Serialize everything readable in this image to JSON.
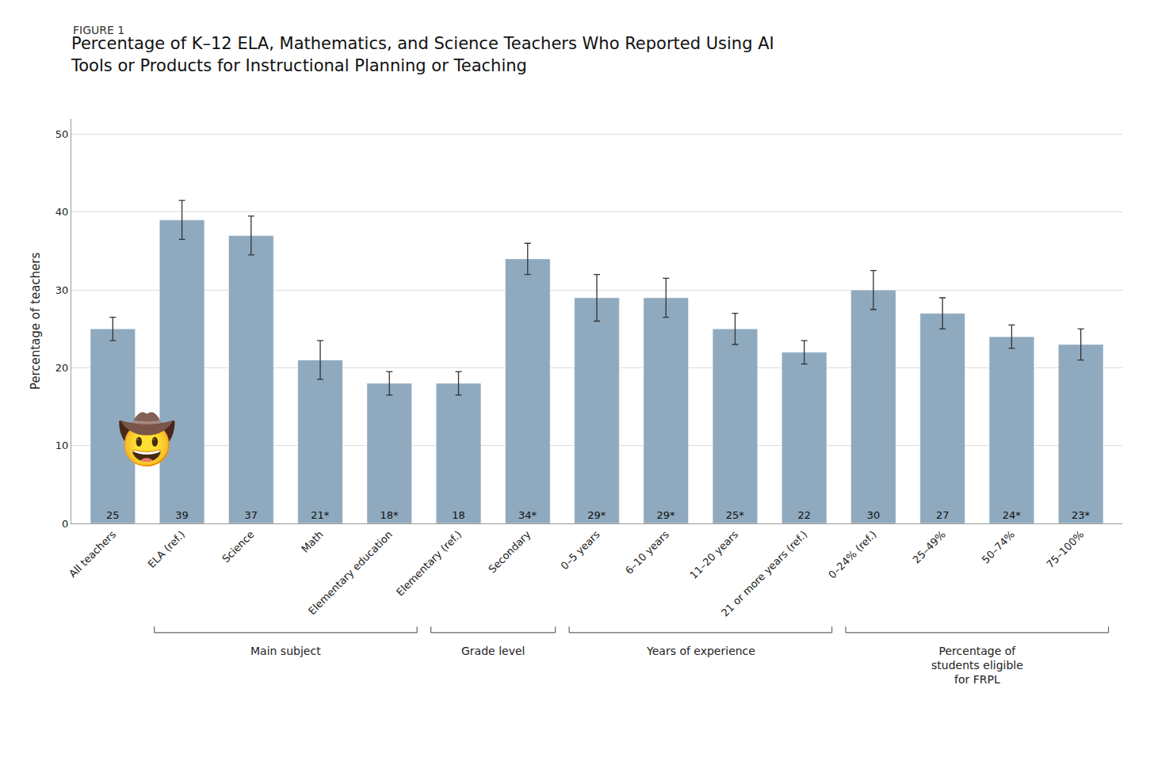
{
  "chart_data": {
    "type": "bar",
    "title": "Percentage of K–12 ELA, Mathematics, and Science Teachers Who Reported Using AI\nTools or Products for Instructional Planning or Teaching",
    "ylabel": "Percentage of teachers",
    "categories": [
      "All teachers",
      "ELA (ref.)",
      "Science",
      "Math",
      "Elementary education",
      "Elementary (ref.)",
      "Secondary",
      "0–5 years",
      "6–10 years",
      "11–20 years",
      "21 or more years (ref.)",
      "0–24% (ref.)",
      "25–49%",
      "50–74%",
      "75–100%"
    ],
    "values": [
      25,
      39,
      37,
      21,
      18,
      18,
      34,
      29,
      29,
      25,
      22,
      30,
      27,
      24,
      23
    ],
    "value_labels": [
      "25",
      "39",
      "37",
      "21*",
      "18*",
      "18",
      "34*",
      "29*",
      "29*",
      "25*",
      "22",
      "30",
      "27",
      "24*",
      "23*"
    ],
    "error_low": [
      1.5,
      2.5,
      2.5,
      2.5,
      1.5,
      1.5,
      2.0,
      3.0,
      2.5,
      2.0,
      1.5,
      2.5,
      2.0,
      1.5,
      2.0
    ],
    "error_high": [
      1.5,
      2.5,
      2.5,
      2.5,
      1.5,
      1.5,
      2.0,
      3.0,
      2.5,
      2.0,
      1.5,
      2.5,
      2.0,
      1.5,
      2.0
    ],
    "color": "#8faabf",
    "ylim": [
      0,
      52
    ],
    "yticks": [
      0,
      10,
      20,
      30,
      40,
      50
    ],
    "grid": true,
    "data_labels": true,
    "annotations": [
      {
        "text": "FIGURE 1"
      },
      {
        "text": "🤠",
        "y": 7
      },
      {
        "text": "Main subject",
        "from": "ELA (ref.)",
        "to": "Elementary education"
      },
      {
        "text": "Grade level",
        "from": "Elementary (ref.)",
        "to": "Secondary"
      },
      {
        "text": "Years of experience",
        "from": "0–5 years",
        "to": "21 or more years (ref.)"
      },
      {
        "text": "Percentage of\nstudents eligible\nfor FRPL",
        "from": "0–24% (ref.)",
        "to": "75–100%"
      }
    ]
  }
}
